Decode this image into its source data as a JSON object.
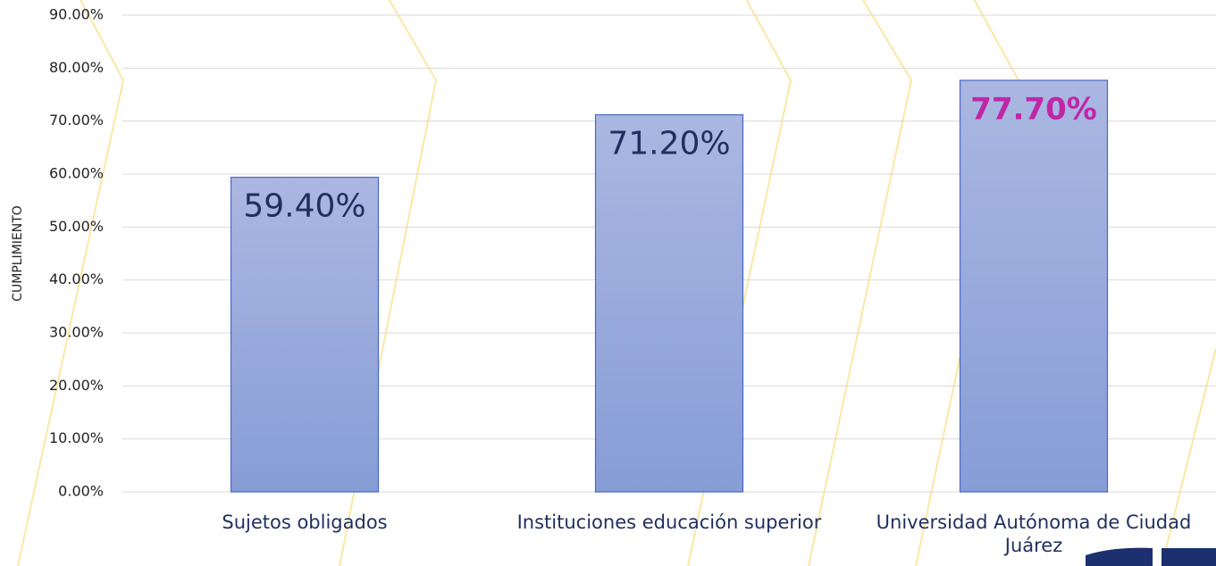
{
  "chart_data": {
    "type": "bar",
    "y_axis_label": "CUMPLIMIENTO",
    "categories": [
      "Sujetos obligados",
      "Instituciones educación superior",
      "Universidad Autónoma de Ciudad Juárez"
    ],
    "values": [
      59.4,
      71.2,
      77.7
    ],
    "value_labels": [
      "59.40%",
      "71.20%",
      "77.70%"
    ],
    "value_label_colors": [
      "#1f2f5f",
      "#1f2f5f",
      "#c026a8"
    ],
    "value_label_bold": [
      false,
      false,
      true
    ],
    "color": "#98aadc",
    "ylim": [
      0,
      90
    ],
    "yticks": [
      {
        "value": 0,
        "label": "0.00%"
      },
      {
        "value": 10,
        "label": "10.00%"
      },
      {
        "value": 20,
        "label": "20.00%"
      },
      {
        "value": 30,
        "label": "30.00%"
      },
      {
        "value": 40,
        "label": "40.00%"
      },
      {
        "value": 50,
        "label": "50.00%"
      },
      {
        "value": 60,
        "label": "60.00%"
      },
      {
        "value": 70,
        "label": "70.00%"
      },
      {
        "value": 80,
        "label": "80.00%"
      },
      {
        "value": 90,
        "label": "90.00%"
      }
    ],
    "grid": true
  }
}
